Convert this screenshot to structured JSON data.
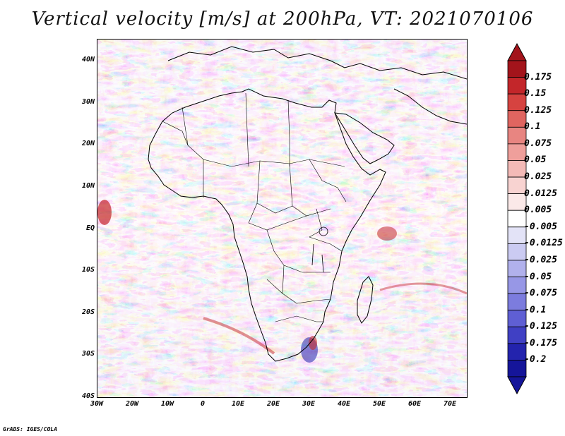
{
  "title": "Vertical velocity [m/s] at 200hPa, VT: 2021070106",
  "credit": "GrADS: IGES/COLA",
  "map": {
    "lat_labels": [
      "40N",
      "30N",
      "20N",
      "10N",
      "EQ",
      "10S",
      "20S",
      "30S",
      "40S"
    ],
    "lon_labels": [
      "30W",
      "20W",
      "10W",
      "0",
      "10E",
      "20E",
      "30E",
      "40E",
      "50E",
      "60E",
      "70E"
    ]
  },
  "colorbar": {
    "labels": [
      "0.175",
      "0.15",
      "0.125",
      "0.1",
      "0.075",
      "0.05",
      "0.025",
      "0.0125",
      "0.005",
      "-0.005",
      "-0.0125",
      "-0.025",
      "-0.05",
      "-0.075",
      "-0.1",
      "-0.125",
      "-0.175",
      "-0.2"
    ],
    "colors": [
      "#a3141b",
      "#c3262a",
      "#d64340",
      "#e06560",
      "#e88581",
      "#ef9f9b",
      "#f4bab7",
      "#f8d3d1",
      "#fbe9e8",
      "#ffffff",
      "#e3e3f7",
      "#cbcbf2",
      "#b1b1ec",
      "#9797e6",
      "#7c7cde",
      "#5f5fd4",
      "#4040c4",
      "#2323ad",
      "#15159a"
    ]
  }
}
